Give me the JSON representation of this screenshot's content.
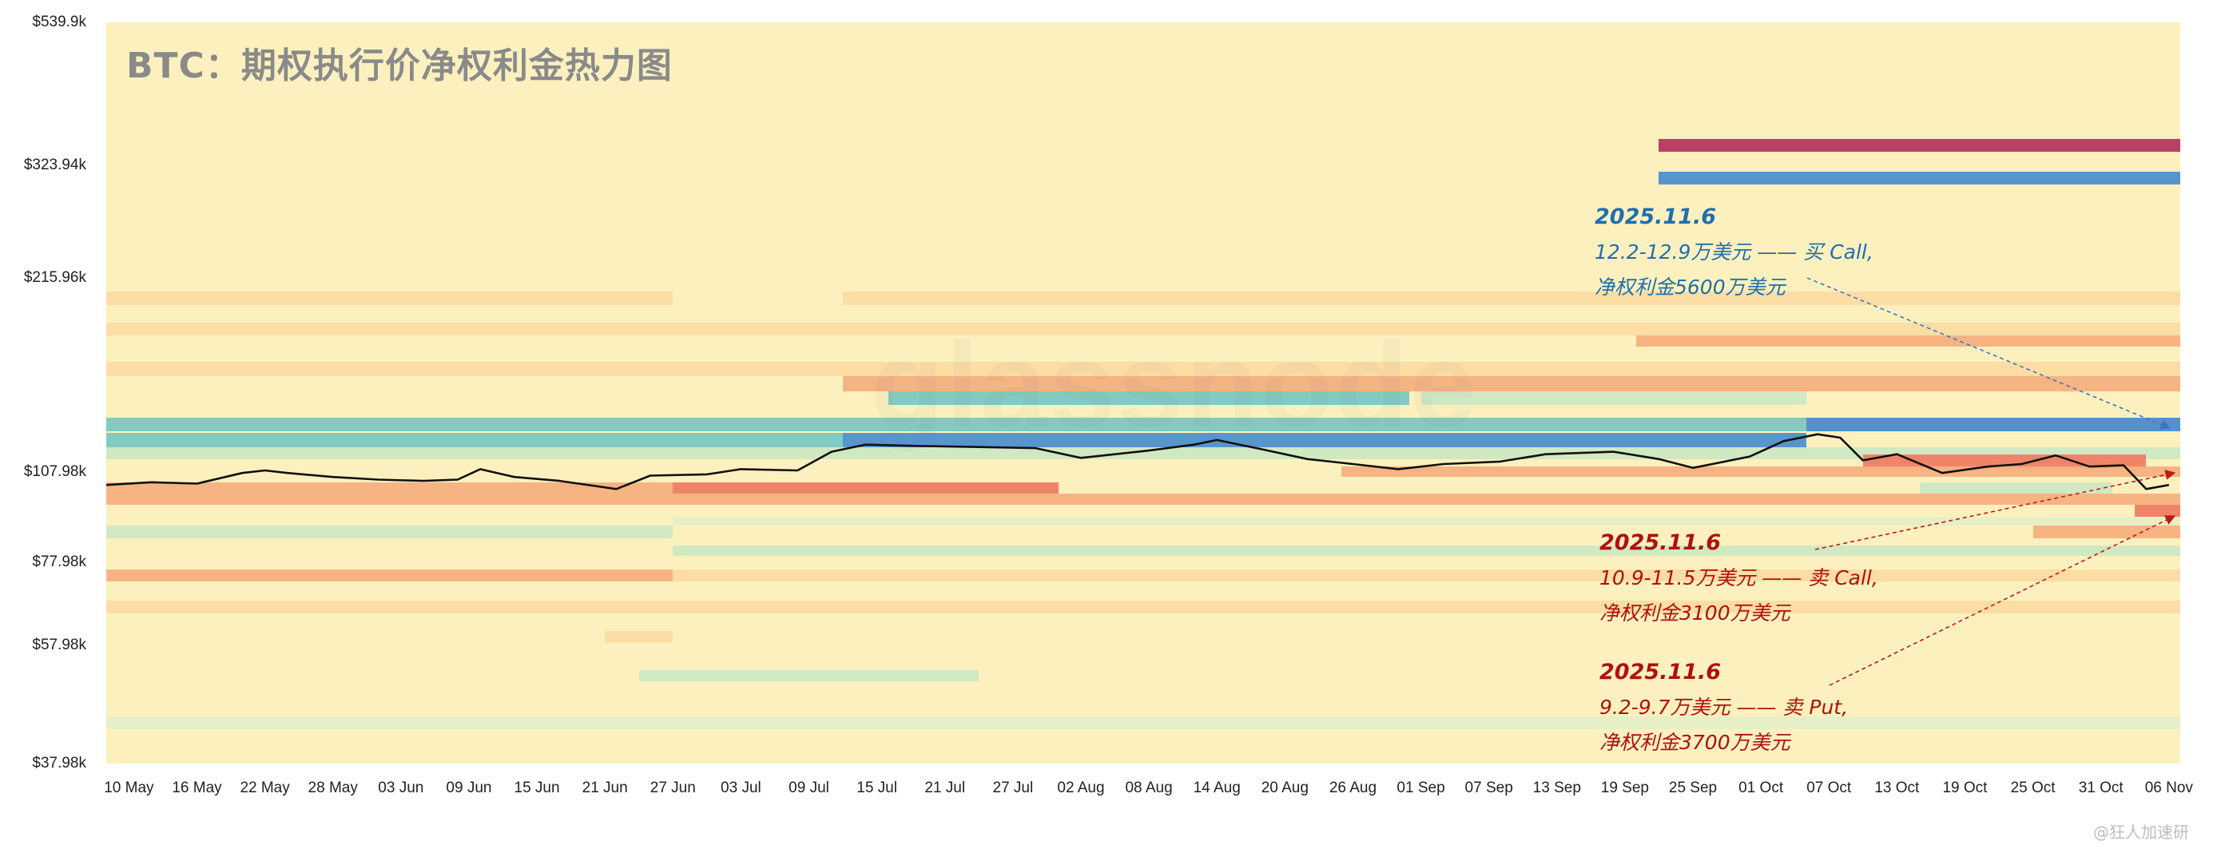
{
  "title": "BTC：期权执行价净权利金热力图",
  "watermark": "glassnode",
  "corner_mark": "@狂人加速研",
  "colors": {
    "background": "#fcf1be",
    "strong_blue": "#4f8fcc",
    "teal": "#7cc8c0",
    "light_green": "#cde8c2",
    "pale_green": "#e3efc8",
    "peach": "#fbd9a0",
    "orange": "#f6b07f",
    "red_orange": "#ef7d64",
    "crimson": "#b4365f",
    "price_line": "#111111",
    "annotation_blue": "#1f6fb0",
    "annotation_red": "#b01010"
  },
  "chart_data": {
    "type": "heatmap",
    "title": "BTC：期权执行价净权利金热力图",
    "x_axis": {
      "range": [
        "2025-05-08",
        "2025-11-07"
      ],
      "tick_labels": [
        "10 May",
        "16 May",
        "22 May",
        "28 May",
        "03 Jun",
        "09 Jun",
        "15 Jun",
        "21 Jun",
        "27 Jun",
        "03 Jul",
        "09 Jul",
        "15 Jul",
        "21 Jul",
        "27 Jul",
        "02 Aug",
        "08 Aug",
        "14 Aug",
        "20 Aug",
        "26 Aug",
        "01 Sep",
        "07 Sep",
        "13 Sep",
        "19 Sep",
        "25 Sep",
        "01 Oct",
        "07 Oct",
        "13 Oct",
        "19 Oct",
        "25 Oct",
        "31 Oct",
        "06 Nov"
      ]
    },
    "y_axis": {
      "scale": "log",
      "range": [
        37980,
        539900
      ],
      "ticks": [
        {
          "value": 539900,
          "label": "$539.9k"
        },
        {
          "value": 323940,
          "label": "$323.94k"
        },
        {
          "value": 215960,
          "label": "$215.96k"
        },
        {
          "value": 107980,
          "label": "$107.98k"
        },
        {
          "value": 77980,
          "label": "$77.98k"
        },
        {
          "value": 57980,
          "label": "$57.98k"
        },
        {
          "value": 37980,
          "label": "$37.98k"
        }
      ]
    },
    "legend": "none",
    "bands": [
      {
        "low": 340000,
        "high": 356000,
        "start": "2025-09-22",
        "end": "2025-11-07",
        "color": "crimson"
      },
      {
        "low": 302000,
        "high": 316000,
        "start": "2025-09-22",
        "end": "2025-11-07",
        "color": "strong_blue"
      },
      {
        "low": 196000,
        "high": 206000,
        "start": "2025-05-08",
        "end": "2025-06-27",
        "color": "peach"
      },
      {
        "low": 196000,
        "high": 206000,
        "start": "2025-07-12",
        "end": "2025-11-07",
        "color": "peach"
      },
      {
        "low": 176000,
        "high": 184000,
        "start": "2025-05-08",
        "end": "2025-11-07",
        "color": "peach"
      },
      {
        "low": 169000,
        "high": 176000,
        "start": "2025-09-20",
        "end": "2025-11-07",
        "color": "orange"
      },
      {
        "low": 152000,
        "high": 160000,
        "start": "2025-05-08",
        "end": "2025-11-07",
        "color": "peach"
      },
      {
        "low": 144000,
        "high": 152000,
        "start": "2025-07-12",
        "end": "2025-11-07",
        "color": "orange"
      },
      {
        "low": 137000,
        "high": 144000,
        "start": "2025-07-16",
        "end": "2025-08-31",
        "color": "teal"
      },
      {
        "low": 137000,
        "high": 144000,
        "start": "2025-09-01",
        "end": "2025-10-05",
        "color": "light_green"
      },
      {
        "low": 125000,
        "high": 131000,
        "start": "2025-05-08",
        "end": "2025-11-07",
        "color": "teal"
      },
      {
        "low": 125000,
        "high": 131000,
        "start": "2025-10-05",
        "end": "2025-10-31",
        "color": "strong_blue"
      },
      {
        "low": 125000,
        "high": 131000,
        "start": "2025-10-31",
        "end": "2025-11-07",
        "color": "strong_blue"
      },
      {
        "low": 118000,
        "high": 124000,
        "start": "2025-07-12",
        "end": "2025-10-05",
        "color": "strong_blue"
      },
      {
        "low": 118000,
        "high": 124000,
        "start": "2025-05-08",
        "end": "2025-07-12",
        "color": "teal"
      },
      {
        "low": 113000,
        "high": 118000,
        "start": "2025-05-08",
        "end": "2025-11-07",
        "color": "light_green"
      },
      {
        "low": 109000,
        "high": 115000,
        "start": "2025-10-10",
        "end": "2025-11-04",
        "color": "red_orange"
      },
      {
        "low": 106000,
        "high": 110000,
        "start": "2025-08-25",
        "end": "2025-11-07",
        "color": "orange"
      },
      {
        "low": 100000,
        "high": 104000,
        "start": "2025-06-27",
        "end": "2025-07-31",
        "color": "red_orange"
      },
      {
        "low": 100000,
        "high": 104000,
        "start": "2025-05-08",
        "end": "2025-06-27",
        "color": "orange"
      },
      {
        "low": 100000,
        "high": 104000,
        "start": "2025-10-15",
        "end": "2025-11-01",
        "color": "light_green"
      },
      {
        "low": 96000,
        "high": 100000,
        "start": "2025-05-08",
        "end": "2025-11-07",
        "color": "orange"
      },
      {
        "low": 92000,
        "high": 96000,
        "start": "2025-11-03",
        "end": "2025-11-07",
        "color": "red_orange"
      },
      {
        "low": 89000,
        "high": 92000,
        "start": "2025-06-27",
        "end": "2025-11-07",
        "color": "pale_green"
      },
      {
        "low": 85000,
        "high": 89000,
        "start": "2025-05-08",
        "end": "2025-06-27",
        "color": "light_green"
      },
      {
        "low": 85000,
        "high": 89000,
        "start": "2025-10-25",
        "end": "2025-11-07",
        "color": "orange"
      },
      {
        "low": 80000,
        "high": 83000,
        "start": "2025-06-27",
        "end": "2025-11-07",
        "color": "light_green"
      },
      {
        "low": 73000,
        "high": 76000,
        "start": "2025-05-08",
        "end": "2025-06-27",
        "color": "orange"
      },
      {
        "low": 73000,
        "high": 76000,
        "start": "2025-06-27",
        "end": "2025-11-07",
        "color": "peach"
      },
      {
        "low": 65000,
        "high": 68000,
        "start": "2025-05-08",
        "end": "2025-11-07",
        "color": "peach"
      },
      {
        "low": 58500,
        "high": 61000,
        "start": "2025-06-21",
        "end": "2025-06-27",
        "color": "peach"
      },
      {
        "low": 51000,
        "high": 53000,
        "start": "2025-06-24",
        "end": "2025-07-24",
        "color": "light_green"
      },
      {
        "low": 43000,
        "high": 45000,
        "start": "2025-05-08",
        "end": "2025-11-07",
        "color": "pale_green"
      }
    ],
    "price_series": {
      "dates": [
        "2025-05-08",
        "2025-05-12",
        "2025-05-16",
        "2025-05-20",
        "2025-05-22",
        "2025-05-24",
        "2025-05-28",
        "2025-06-01",
        "2025-06-05",
        "2025-06-08",
        "2025-06-10",
        "2025-06-13",
        "2025-06-17",
        "2025-06-22",
        "2025-06-25",
        "2025-06-30",
        "2025-07-03",
        "2025-07-08",
        "2025-07-11",
        "2025-07-14",
        "2025-07-18",
        "2025-07-24",
        "2025-07-29",
        "2025-08-02",
        "2025-08-08",
        "2025-08-12",
        "2025-08-14",
        "2025-08-18",
        "2025-08-22",
        "2025-08-26",
        "2025-08-30",
        "2025-09-03",
        "2025-09-08",
        "2025-09-12",
        "2025-09-18",
        "2025-09-22",
        "2025-09-25",
        "2025-09-30",
        "2025-10-03",
        "2025-10-06",
        "2025-10-08",
        "2025-10-10",
        "2025-10-13",
        "2025-10-17",
        "2025-10-21",
        "2025-10-24",
        "2025-10-27",
        "2025-10-30",
        "2025-11-02",
        "2025-11-04",
        "2025-11-06"
      ],
      "values": [
        103000,
        104000,
        103500,
        107500,
        108500,
        107500,
        106000,
        105000,
        104500,
        105000,
        109000,
        106000,
        104500,
        101500,
        106500,
        107000,
        109000,
        108500,
        116000,
        119000,
        118500,
        118000,
        117500,
        113500,
        116500,
        119000,
        121000,
        117000,
        113000,
        111000,
        109000,
        111000,
        112000,
        115000,
        116000,
        113000,
        109500,
        114000,
        120500,
        123500,
        122000,
        112500,
        115000,
        107500,
        110000,
        111000,
        114500,
        110000,
        110500,
        101500,
        103000
      ]
    },
    "annotations": [
      {
        "date": "2025.11.6",
        "line1": "12.2-12.9万美元 —— 买 Call,",
        "line2": "净权利金5600万美元",
        "color": "annotation_blue"
      },
      {
        "date": "2025.11.6",
        "line1": "10.9-11.5万美元 —— 卖 Call,",
        "line2": "净权利金3100万美元",
        "color": "annotation_red"
      },
      {
        "date": "2025.11.6",
        "line1": "9.2-9.7万美元 —— 卖 Put,",
        "line2": "净权利金3700万美元",
        "color": "annotation_red"
      }
    ]
  }
}
